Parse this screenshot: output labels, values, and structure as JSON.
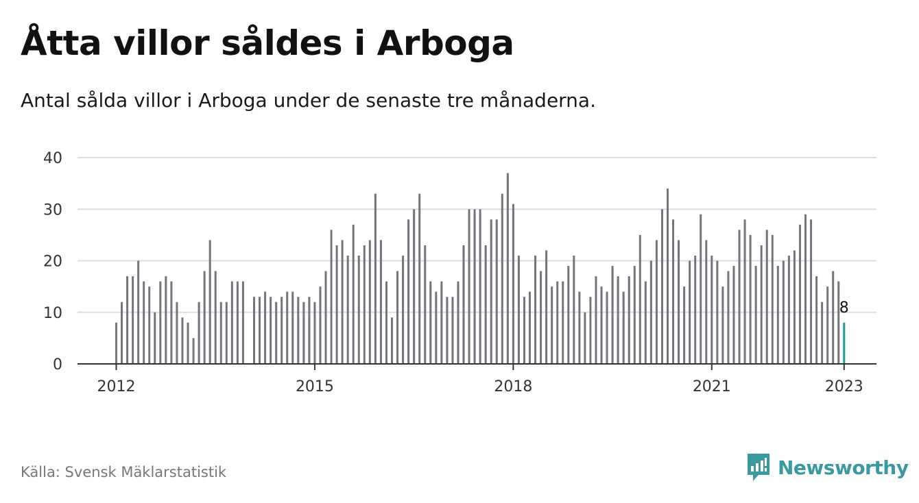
{
  "header": {
    "title": "Åtta villor såldes i Arboga",
    "subtitle": "Antal sålda villor i Arboga under de senaste tre månaderna."
  },
  "footer": {
    "source": "Källa: Svensk Mäklarstatistik",
    "brand": "Newsworthy",
    "brand_icon": "newsworthy-logo-icon"
  },
  "colors": {
    "bar": "#74747c",
    "highlight": "#1a9f99",
    "grid": "#dddddd",
    "axis": "#333333",
    "brand": "#3a9aa0"
  },
  "chart_data": {
    "type": "bar",
    "title": "Åtta villor såldes i Arboga",
    "subtitle": "Antal sålda villor i Arboga under de senaste tre månaderna.",
    "xlabel": "",
    "ylabel": "",
    "ylim": [
      0,
      40
    ],
    "yticks": [
      0,
      10,
      20,
      30,
      40
    ],
    "xticks": [
      {
        "label": "2012",
        "date": "2012-01"
      },
      {
        "label": "2015",
        "date": "2015-01"
      },
      {
        "label": "2018",
        "date": "2018-01"
      },
      {
        "label": "2021",
        "date": "2021-01"
      },
      {
        "label": "2023",
        "date": "2023-01"
      }
    ],
    "grid": true,
    "legend": "none",
    "start": "2012-01",
    "end": "2023-01",
    "series": [
      {
        "values": [
          8,
          12,
          17,
          17,
          20,
          16,
          15,
          10,
          16,
          17,
          16,
          12,
          9,
          8,
          5,
          12,
          18,
          24,
          18,
          12,
          12,
          16,
          16,
          16,
          null,
          13,
          13,
          14,
          13,
          12,
          13,
          14,
          14,
          13,
          12,
          13,
          12,
          15,
          18,
          26,
          23,
          24,
          21,
          27,
          21,
          23,
          24,
          33,
          24,
          16,
          9,
          18,
          21,
          28,
          30,
          33,
          23,
          16,
          14,
          16,
          13,
          13,
          16,
          23,
          30,
          30,
          30,
          23,
          28,
          28,
          33,
          37,
          31,
          21,
          13,
          14,
          21,
          18,
          22,
          15,
          16,
          16,
          19,
          21,
          14,
          10,
          13,
          17,
          15,
          14,
          19,
          17,
          14,
          17,
          19,
          25,
          16,
          20,
          24,
          30,
          34,
          28,
          24,
          15,
          20,
          21,
          29,
          24,
          21,
          20,
          15,
          18,
          19,
          26,
          28,
          25,
          19,
          23,
          26,
          25,
          19,
          20,
          21,
          22,
          27,
          29,
          28,
          17,
          12,
          15,
          18,
          16,
          8
        ]
      }
    ],
    "highlight": {
      "date": "2023-01",
      "value": 8,
      "label": "8"
    }
  }
}
